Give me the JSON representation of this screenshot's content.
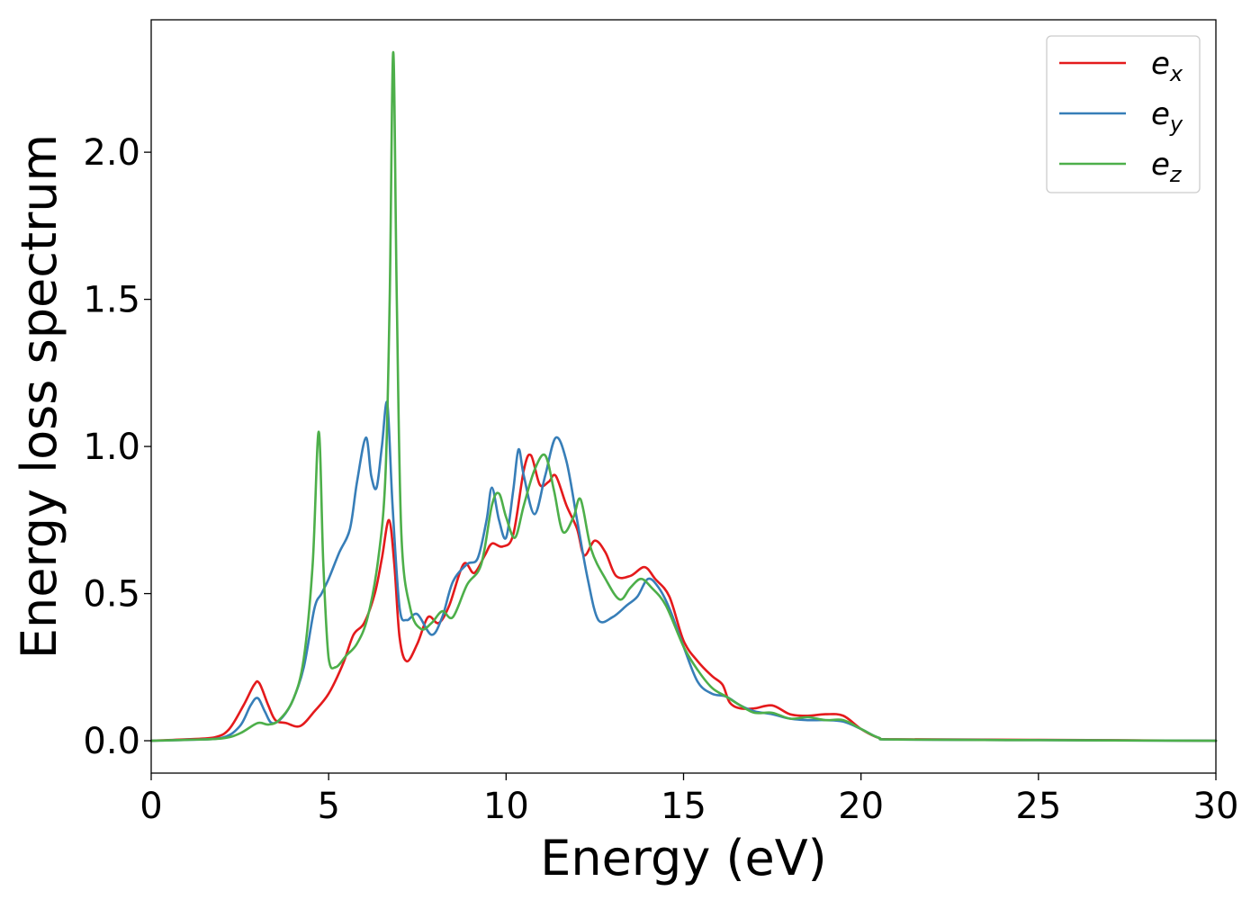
{
  "chart_data": {
    "type": "line",
    "title": "",
    "xlabel": "Energy (eV)",
    "ylabel": "Energy loss spectrum",
    "xlim": [
      0,
      30
    ],
    "ylim": [
      -0.11,
      2.45
    ],
    "xticks": [
      0,
      5,
      10,
      15,
      20,
      25,
      30
    ],
    "xtick_labels": [
      "0",
      "5",
      "10",
      "15",
      "20",
      "25",
      "30"
    ],
    "yticks": [
      0.0,
      0.5,
      1.0,
      1.5,
      2.0
    ],
    "ytick_labels": [
      "0.0",
      "0.5",
      "1.0",
      "1.5",
      "2.0"
    ],
    "grid": false,
    "legend_position": "top-right",
    "series": [
      {
        "name": "e_x",
        "legend_main": "e",
        "legend_sub": "x",
        "color": "#e41a1c",
        "points": [
          [
            0,
            0.0
          ],
          [
            1.0,
            0.005
          ],
          [
            1.8,
            0.012
          ],
          [
            2.2,
            0.04
          ],
          [
            2.6,
            0.12
          ],
          [
            2.9,
            0.19
          ],
          [
            3.05,
            0.195
          ],
          [
            3.3,
            0.12
          ],
          [
            3.5,
            0.07
          ],
          [
            3.8,
            0.06
          ],
          [
            4.2,
            0.05
          ],
          [
            4.6,
            0.1
          ],
          [
            5.0,
            0.16
          ],
          [
            5.4,
            0.26
          ],
          [
            5.7,
            0.36
          ],
          [
            6.0,
            0.4
          ],
          [
            6.3,
            0.5
          ],
          [
            6.5,
            0.62
          ],
          [
            6.7,
            0.75
          ],
          [
            6.85,
            0.6
          ],
          [
            7.0,
            0.35
          ],
          [
            7.2,
            0.27
          ],
          [
            7.5,
            0.33
          ],
          [
            7.8,
            0.42
          ],
          [
            8.1,
            0.4
          ],
          [
            8.4,
            0.46
          ],
          [
            8.8,
            0.6
          ],
          [
            9.1,
            0.57
          ],
          [
            9.4,
            0.63
          ],
          [
            9.6,
            0.67
          ],
          [
            9.9,
            0.66
          ],
          [
            10.2,
            0.7
          ],
          [
            10.5,
            0.92
          ],
          [
            10.7,
            0.97
          ],
          [
            10.95,
            0.87
          ],
          [
            11.2,
            0.88
          ],
          [
            11.4,
            0.9
          ],
          [
            11.7,
            0.8
          ],
          [
            12.0,
            0.72
          ],
          [
            12.2,
            0.63
          ],
          [
            12.5,
            0.68
          ],
          [
            12.8,
            0.64
          ],
          [
            13.1,
            0.56
          ],
          [
            13.5,
            0.56
          ],
          [
            13.9,
            0.59
          ],
          [
            14.2,
            0.55
          ],
          [
            14.6,
            0.49
          ],
          [
            15.0,
            0.34
          ],
          [
            15.4,
            0.27
          ],
          [
            15.8,
            0.22
          ],
          [
            16.1,
            0.19
          ],
          [
            16.3,
            0.13
          ],
          [
            16.6,
            0.11
          ],
          [
            17.0,
            0.11
          ],
          [
            17.5,
            0.12
          ],
          [
            18.0,
            0.09
          ],
          [
            18.5,
            0.085
          ],
          [
            19.0,
            0.09
          ],
          [
            19.5,
            0.085
          ],
          [
            20.0,
            0.04
          ],
          [
            20.5,
            0.01
          ],
          [
            21.0,
            0.005
          ],
          [
            25.0,
            0.003
          ],
          [
            30.0,
            0.0
          ]
        ]
      },
      {
        "name": "e_y",
        "legend_main": "e",
        "legend_sub": "y",
        "color": "#377eb8",
        "points": [
          [
            0,
            0.0
          ],
          [
            1.0,
            0.003
          ],
          [
            2.0,
            0.01
          ],
          [
            2.5,
            0.05
          ],
          [
            2.8,
            0.12
          ],
          [
            3.0,
            0.145
          ],
          [
            3.2,
            0.1
          ],
          [
            3.4,
            0.06
          ],
          [
            3.7,
            0.08
          ],
          [
            4.0,
            0.14
          ],
          [
            4.3,
            0.25
          ],
          [
            4.6,
            0.45
          ],
          [
            4.8,
            0.5
          ],
          [
            5.0,
            0.55
          ],
          [
            5.3,
            0.64
          ],
          [
            5.6,
            0.72
          ],
          [
            5.8,
            0.88
          ],
          [
            6.05,
            1.03
          ],
          [
            6.2,
            0.9
          ],
          [
            6.35,
            0.86
          ],
          [
            6.5,
            1.0
          ],
          [
            6.65,
            1.15
          ],
          [
            6.8,
            0.8
          ],
          [
            7.0,
            0.45
          ],
          [
            7.2,
            0.41
          ],
          [
            7.5,
            0.43
          ],
          [
            7.9,
            0.36
          ],
          [
            8.2,
            0.42
          ],
          [
            8.5,
            0.54
          ],
          [
            8.9,
            0.6
          ],
          [
            9.2,
            0.62
          ],
          [
            9.45,
            0.75
          ],
          [
            9.6,
            0.86
          ],
          [
            9.8,
            0.75
          ],
          [
            10.0,
            0.69
          ],
          [
            10.2,
            0.85
          ],
          [
            10.35,
            0.99
          ],
          [
            10.5,
            0.9
          ],
          [
            10.8,
            0.77
          ],
          [
            11.1,
            0.9
          ],
          [
            11.4,
            1.03
          ],
          [
            11.7,
            0.95
          ],
          [
            12.0,
            0.75
          ],
          [
            12.3,
            0.55
          ],
          [
            12.6,
            0.41
          ],
          [
            13.0,
            0.42
          ],
          [
            13.4,
            0.46
          ],
          [
            13.7,
            0.49
          ],
          [
            14.0,
            0.55
          ],
          [
            14.3,
            0.52
          ],
          [
            14.6,
            0.45
          ],
          [
            15.0,
            0.32
          ],
          [
            15.4,
            0.2
          ],
          [
            15.8,
            0.16
          ],
          [
            16.2,
            0.15
          ],
          [
            16.6,
            0.12
          ],
          [
            17.0,
            0.1
          ],
          [
            17.5,
            0.09
          ],
          [
            18.0,
            0.075
          ],
          [
            18.5,
            0.07
          ],
          [
            19.0,
            0.07
          ],
          [
            19.5,
            0.065
          ],
          [
            20.0,
            0.04
          ],
          [
            20.5,
            0.01
          ],
          [
            21.0,
            0.004
          ],
          [
            25.0,
            0.002
          ],
          [
            30.0,
            0.0
          ]
        ]
      },
      {
        "name": "e_z",
        "legend_main": "e",
        "legend_sub": "z",
        "color": "#4daf4a",
        "points": [
          [
            0,
            0.0
          ],
          [
            1.0,
            0.003
          ],
          [
            2.0,
            0.008
          ],
          [
            2.5,
            0.025
          ],
          [
            3.0,
            0.06
          ],
          [
            3.3,
            0.055
          ],
          [
            3.6,
            0.07
          ],
          [
            4.0,
            0.14
          ],
          [
            4.3,
            0.28
          ],
          [
            4.55,
            0.6
          ],
          [
            4.72,
            1.05
          ],
          [
            4.85,
            0.6
          ],
          [
            5.0,
            0.28
          ],
          [
            5.2,
            0.25
          ],
          [
            5.5,
            0.29
          ],
          [
            5.8,
            0.33
          ],
          [
            6.1,
            0.42
          ],
          [
            6.4,
            0.62
          ],
          [
            6.6,
            0.9
          ],
          [
            6.72,
            1.5
          ],
          [
            6.82,
            2.34
          ],
          [
            6.92,
            1.5
          ],
          [
            7.05,
            0.7
          ],
          [
            7.3,
            0.45
          ],
          [
            7.6,
            0.38
          ],
          [
            7.9,
            0.4
          ],
          [
            8.2,
            0.44
          ],
          [
            8.5,
            0.42
          ],
          [
            8.9,
            0.53
          ],
          [
            9.3,
            0.6
          ],
          [
            9.6,
            0.8
          ],
          [
            9.8,
            0.84
          ],
          [
            10.0,
            0.76
          ],
          [
            10.25,
            0.69
          ],
          [
            10.5,
            0.8
          ],
          [
            10.8,
            0.92
          ],
          [
            11.1,
            0.97
          ],
          [
            11.35,
            0.85
          ],
          [
            11.6,
            0.71
          ],
          [
            11.9,
            0.76
          ],
          [
            12.1,
            0.82
          ],
          [
            12.4,
            0.65
          ],
          [
            12.8,
            0.55
          ],
          [
            13.2,
            0.48
          ],
          [
            13.5,
            0.52
          ],
          [
            13.8,
            0.55
          ],
          [
            14.1,
            0.52
          ],
          [
            14.5,
            0.46
          ],
          [
            15.0,
            0.32
          ],
          [
            15.4,
            0.24
          ],
          [
            15.8,
            0.18
          ],
          [
            16.2,
            0.15
          ],
          [
            16.6,
            0.12
          ],
          [
            17.0,
            0.095
          ],
          [
            17.5,
            0.095
          ],
          [
            18.0,
            0.075
          ],
          [
            18.5,
            0.08
          ],
          [
            19.0,
            0.07
          ],
          [
            19.5,
            0.07
          ],
          [
            20.0,
            0.04
          ],
          [
            20.5,
            0.01
          ],
          [
            21.0,
            0.004
          ],
          [
            25.0,
            0.002
          ],
          [
            30.0,
            0.0
          ]
        ]
      }
    ]
  }
}
